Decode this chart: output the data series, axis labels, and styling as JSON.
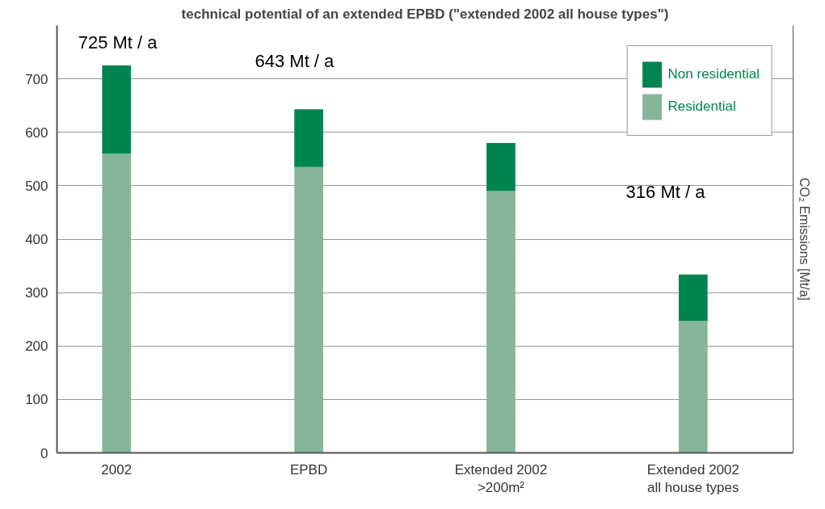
{
  "chart_data": {
    "type": "bar",
    "title": "technical potential of an extended EPBD (\"extended 2002 all house types\")",
    "categories": [
      "2002",
      "EPBD",
      "Extended 2002\n>200m²",
      "Extended 2002\nall house types"
    ],
    "stacked": true,
    "series": [
      {
        "name": "Residential",
        "color": "#85b59b",
        "values": [
          560,
          535,
          490,
          247
        ]
      },
      {
        "name": "Non residential",
        "color": "#008450",
        "values": [
          165,
          108,
          90,
          87
        ]
      }
    ],
    "ylim": [
      0,
      800
    ],
    "yticks": [
      0,
      100,
      200,
      300,
      400,
      500,
      600,
      700
    ],
    "y2label": "CO₂ Emissions [Mt/a]",
    "grid": "y",
    "legend": "top right",
    "annotations": [
      "725 Mt / a",
      "643 Mt / a",
      "316 Mt / a"
    ]
  }
}
